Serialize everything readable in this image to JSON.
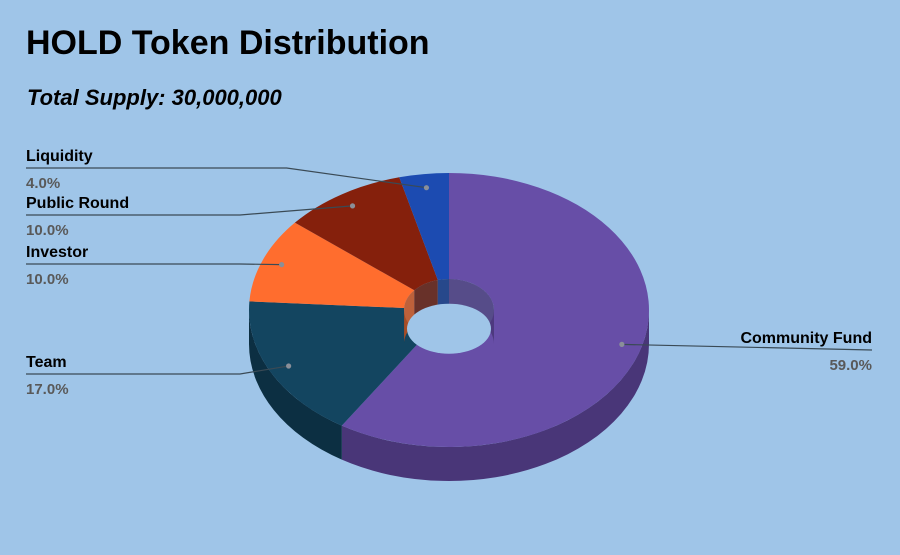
{
  "chart_data": {
    "type": "pie",
    "style": "3d-donut",
    "title": "HOLD Token Distribution",
    "subtitle": "Total Supply: 30,000,000",
    "slices": [
      {
        "label": "Community Fund",
        "value": 59.0,
        "value_label": "59.0%",
        "color": "#674ea7",
        "side_color": "#493678"
      },
      {
        "label": "Team",
        "value": 17.0,
        "value_label": "17.0%",
        "color": "#134560",
        "side_color": "#0c2f42"
      },
      {
        "label": "Investor",
        "value": 10.0,
        "value_label": "10.0%",
        "color": "#ff6d2e",
        "side_color": "#c24f1c"
      },
      {
        "label": "Public Round",
        "value": 10.0,
        "value_label": "10.0%",
        "color": "#85200c",
        "side_color": "#5e1607"
      },
      {
        "label": "Liquidity",
        "value": 4.0,
        "value_label": "4.0%",
        "color": "#1c4bb1",
        "side_color": "#12317a"
      }
    ],
    "legend": "none",
    "label_color": "#000000",
    "value_label_color": "#595959",
    "background": "#9fc5e8"
  }
}
